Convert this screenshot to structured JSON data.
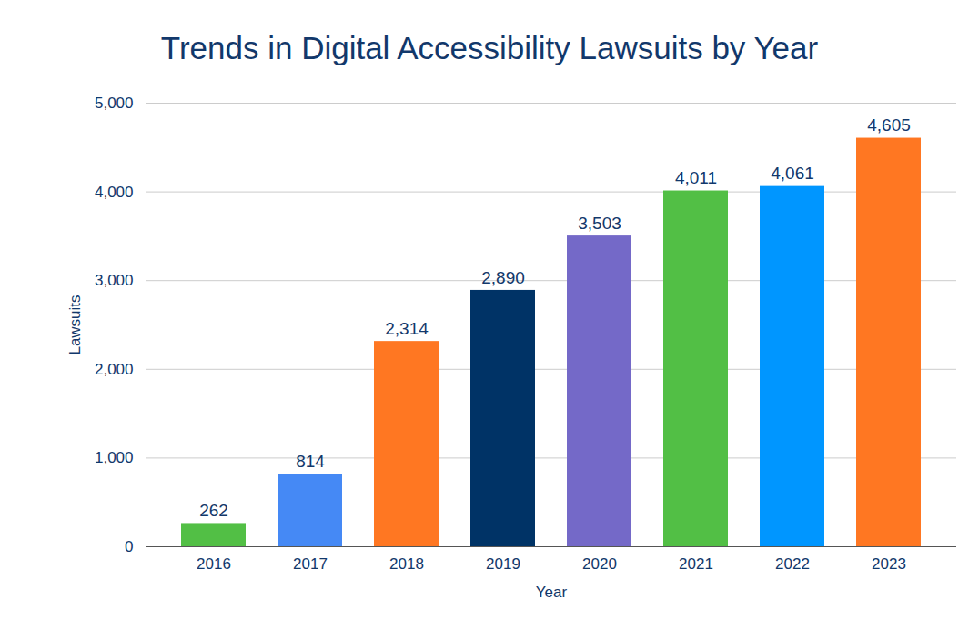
{
  "chart_data": {
    "type": "bar",
    "title": "Trends in Digital Accessibility Lawsuits by Year",
    "x_label": "Year",
    "y_label": "Lawsuits",
    "categories": [
      "2016",
      "2017",
      "2018",
      "2019",
      "2020",
      "2021",
      "2022",
      "2023"
    ],
    "values": [
      262,
      814,
      2314,
      2890,
      3503,
      4011,
      4061,
      4605
    ],
    "value_labels": [
      "262",
      "814",
      "2,314",
      "2,890",
      "3,503",
      "4,011",
      "4,061",
      "4,605"
    ],
    "colors": [
      "#52bf45",
      "#4589f5",
      "#ff7722",
      "#003366",
      "#7469c8",
      "#52bf45",
      "#0096ff",
      "#ff7722"
    ],
    "ylim": [
      0,
      5000
    ],
    "yticks": [
      0,
      {
        "value": 1000,
        "label": "1,000"
      },
      {
        "value": 2000,
        "label": "2,000"
      },
      {
        "value": 3000,
        "label": "3,000"
      },
      {
        "value": 4000,
        "label": "4,000"
      },
      {
        "value": 5000,
        "label": "5,000"
      }
    ],
    "grid": true,
    "data_labels": true
  }
}
